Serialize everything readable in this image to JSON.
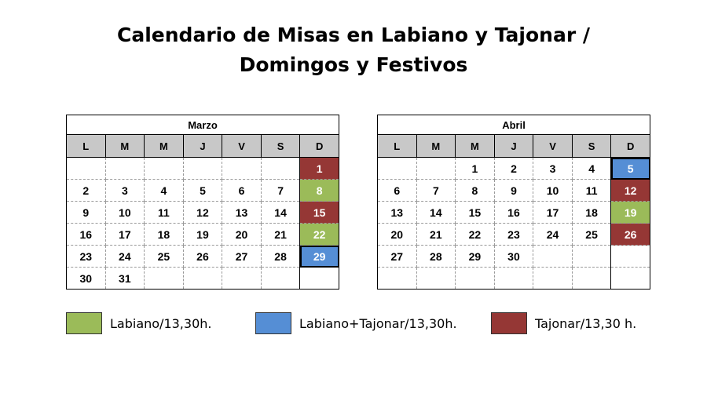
{
  "title_line1": "Calendario de Misas en Labiano y Tajonar /",
  "title_line2": "Domingos y Festivos",
  "colors": {
    "green": "#9bbb59",
    "blue": "#558ed5",
    "red": "#953735"
  },
  "day_headers": [
    "L",
    "M",
    "M",
    "J",
    "V",
    "S",
    "D"
  ],
  "months": [
    {
      "name": "Marzo",
      "weeks": [
        [
          "",
          "",
          "",
          "",
          "",
          "",
          "1"
        ],
        [
          "2",
          "3",
          "4",
          "5",
          "6",
          "7",
          "8"
        ],
        [
          "9",
          "10",
          "11",
          "12",
          "13",
          "14",
          "15"
        ],
        [
          "16",
          "17",
          "18",
          "19",
          "20",
          "21",
          "22"
        ],
        [
          "23",
          "24",
          "25",
          "26",
          "27",
          "28",
          "29"
        ],
        [
          "30",
          "31",
          "",
          "",
          "",
          "",
          ""
        ]
      ],
      "sunday_colors": [
        "red",
        "green",
        "red",
        "green",
        "blue",
        ""
      ]
    },
    {
      "name": "Abril",
      "weeks": [
        [
          "",
          "",
          "1",
          "2",
          "3",
          "4",
          "5"
        ],
        [
          "6",
          "7",
          "8",
          "9",
          "10",
          "11",
          "12"
        ],
        [
          "13",
          "14",
          "15",
          "16",
          "17",
          "18",
          "19"
        ],
        [
          "20",
          "21",
          "22",
          "23",
          "24",
          "25",
          "26"
        ],
        [
          "27",
          "28",
          "29",
          "30",
          "",
          "",
          ""
        ],
        [
          "",
          "",
          "",
          "",
          "",
          "",
          ""
        ]
      ],
      "sunday_colors": [
        "blue",
        "red",
        "green",
        "red",
        "",
        ""
      ]
    }
  ],
  "legend": [
    {
      "label": "Labiano/13,30h.",
      "color": "green"
    },
    {
      "label": "Labiano+Tajonar/13,30h.",
      "color": "blue"
    },
    {
      "label": "Tajonar/13,30 h.",
      "color": "red"
    }
  ]
}
